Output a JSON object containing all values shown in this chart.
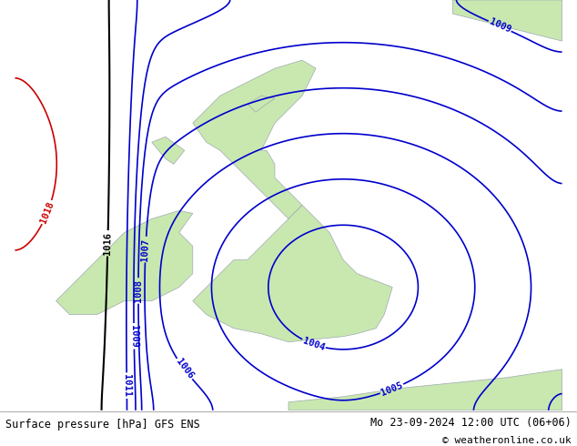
{
  "title_left": "Surface pressure [hPa] GFS ENS",
  "title_right": "Mo 23-09-2024 12:00 UTC (06+06)",
  "copyright": "© weatheronline.co.uk",
  "background_color": "#d0d8e0",
  "land_color": "#c8e8b0",
  "border_color": "#a0a8b0",
  "contour_blue": "#0000cc",
  "contour_red": "#cc0000",
  "contour_black": "#000000",
  "figsize": [
    6.34,
    4.9
  ],
  "dpi": 100,
  "bottom_bar_color": "#e8e8e8",
  "bottom_bar_height": 0.08
}
